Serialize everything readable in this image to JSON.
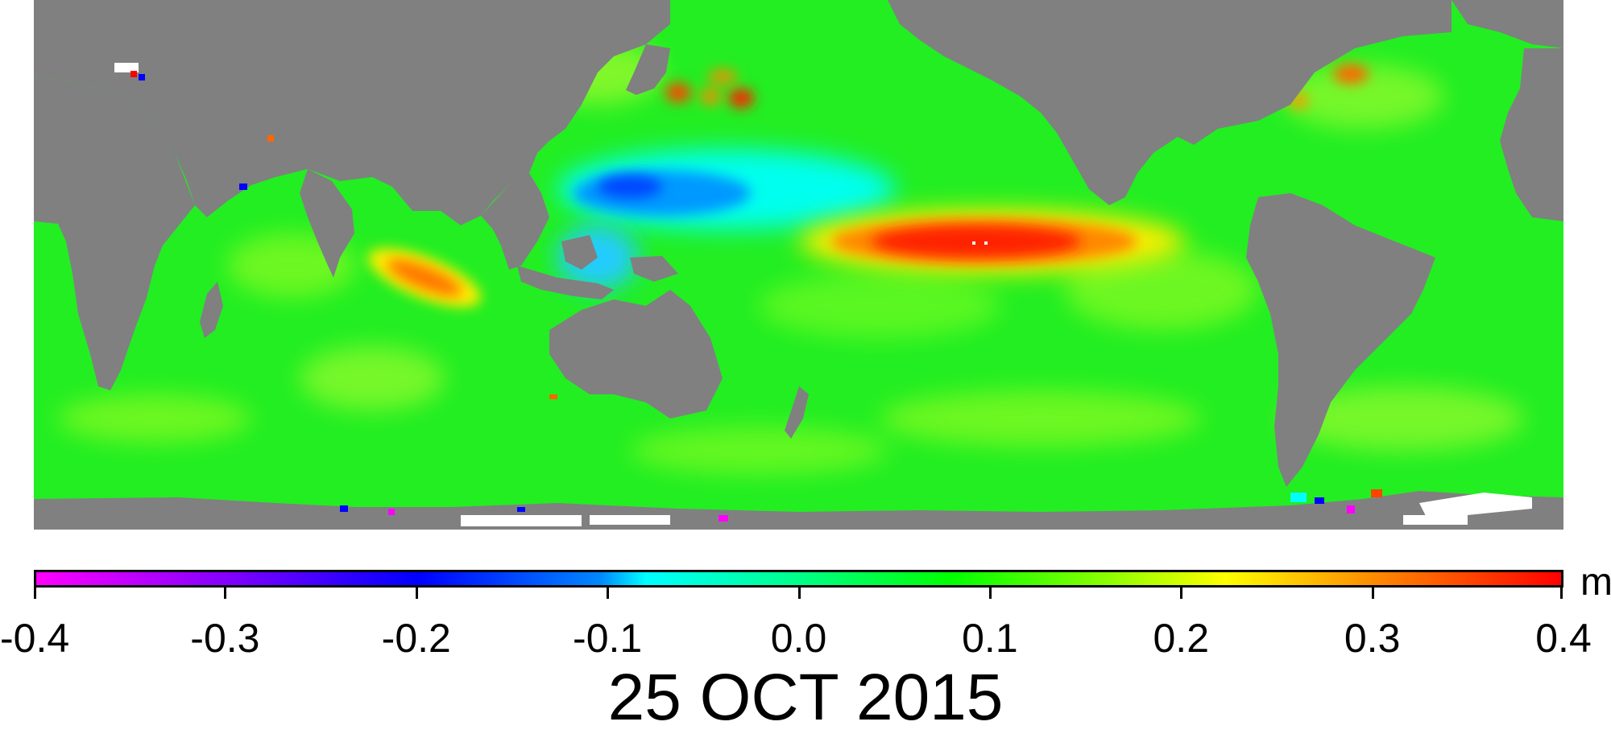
{
  "map": {
    "ocean_color": "#22ee22",
    "land_color": "#808080",
    "ice_color": "#ffffff"
  },
  "colorbar": {
    "min": -0.4,
    "max": 0.4,
    "unit": "m",
    "ticks": [
      "-0.4",
      "-0.3",
      "-0.2",
      "-0.1",
      "0.0",
      "0.1",
      "0.2",
      "0.3",
      "0.4"
    ],
    "palette": [
      "#ff00ff",
      "#8800ff",
      "#0000ff",
      "#0088ff",
      "#00ffff",
      "#00ff88",
      "#00ff00",
      "#88ff00",
      "#ffff00",
      "#ff8800",
      "#ff0000"
    ]
  },
  "date": "25 OCT 2015"
}
